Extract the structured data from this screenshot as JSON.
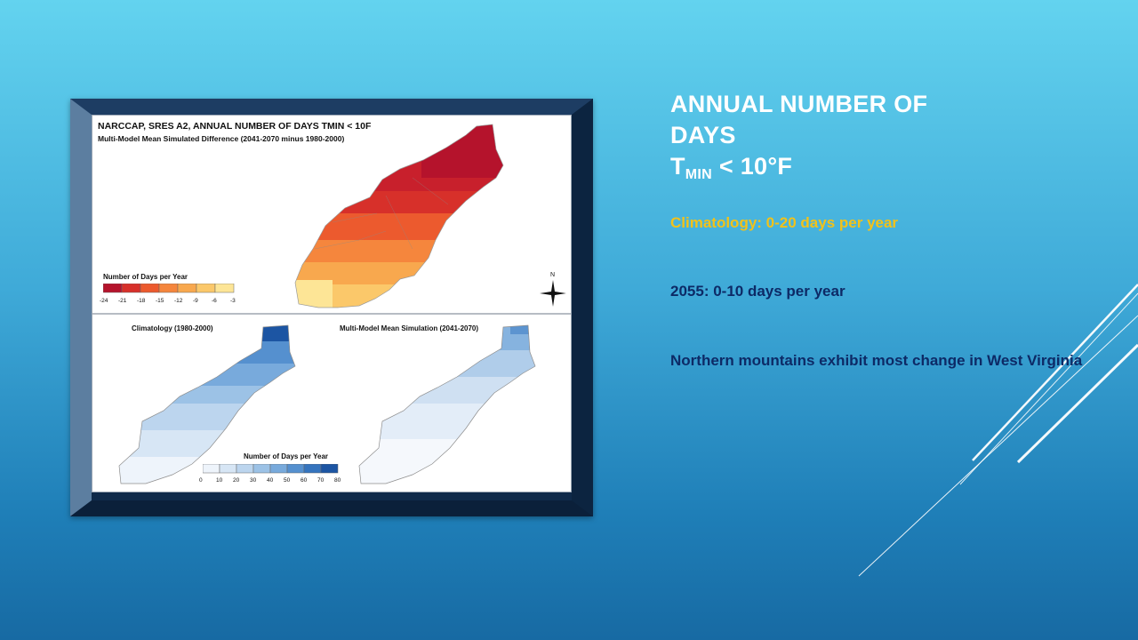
{
  "slide": {
    "title_line1": "ANNUAL NUMBER OF",
    "title_line2": "DAYS",
    "title_line3_main": "T",
    "title_line3_sub": "MIN",
    "title_line3_rest": " < 10°F",
    "bullets": [
      "Climatology: 0-20 days per year",
      "2055: 0-10 days per year",
      "Northern mountains exhibit most change in West Virginia"
    ],
    "colors": {
      "title": "#ffffff",
      "highlight": "#f2c21a",
      "body": "#0d2a66"
    }
  },
  "figure": {
    "title": "NARCCAP, SRES A2, ANNUAL NUMBER OF DAYS TMIN < 10F",
    "subtitle": "Multi-Model Mean Simulated Difference (2041-2070 minus 1980-2000)",
    "legend_top": {
      "title": "Number of Days per Year",
      "ticks": [
        "-24",
        "-21",
        "-18",
        "-15",
        "-12",
        "-9",
        "-6",
        "-3"
      ],
      "colors": [
        "#b5132c",
        "#d7302a",
        "#ec5a2e",
        "#f5863d",
        "#f8a84e",
        "#fbc86a",
        "#fde596"
      ]
    },
    "north_label": "N",
    "left_map_label": "Climatology (1980-2000)",
    "right_map_label": "Multi-Model Mean Simulation (2041-2070)",
    "legend_bottom": {
      "title": "Number of Days per Year",
      "ticks": [
        "0",
        "10",
        "20",
        "30",
        "40",
        "50",
        "60",
        "70",
        "80"
      ],
      "colors": [
        "#eef4fb",
        "#d7e6f5",
        "#bcd5ee",
        "#9cc2e6",
        "#78aadc",
        "#5590cf",
        "#3574be",
        "#1c55a3"
      ]
    }
  }
}
